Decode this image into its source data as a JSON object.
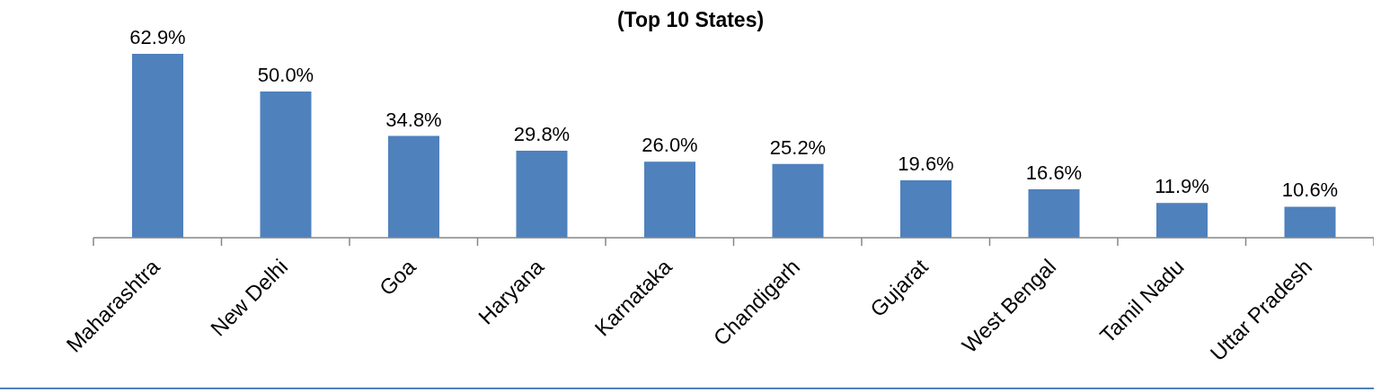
{
  "chart_data": {
    "type": "bar",
    "title": "(Top 10 States)",
    "categories": [
      "Maharashtra",
      "New Delhi",
      "Goa",
      "Haryana",
      "Karnataka",
      "Chandigarh",
      "Gujarat",
      "West Bengal",
      "Tamil Nadu",
      "Uttar Pradesh"
    ],
    "values": [
      62.9,
      50.0,
      34.8,
      29.8,
      26.0,
      25.2,
      19.6,
      16.6,
      11.9,
      10.6
    ],
    "value_labels": [
      "62.9%",
      "50.0%",
      "34.8%",
      "29.8%",
      "26.0%",
      "25.2%",
      "19.6%",
      "16.6%",
      "11.9%",
      "10.6%"
    ],
    "color": "#4f81bd"
  }
}
